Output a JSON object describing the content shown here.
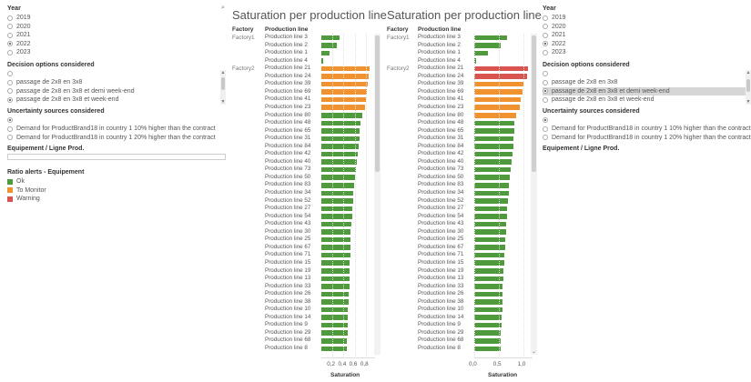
{
  "left_panel": {
    "year_title": "Year",
    "years": [
      {
        "label": "2019",
        "selected": false
      },
      {
        "label": "2020",
        "selected": false
      },
      {
        "label": "2021",
        "selected": false
      },
      {
        "label": "2022",
        "selected": true
      },
      {
        "label": "2023",
        "selected": false
      }
    ],
    "decision_title": "Decision options considered",
    "decision_options": [
      {
        "label": "",
        "selected": false
      },
      {
        "label": "passage de 2x8 en 3x8",
        "selected": false
      },
      {
        "label": "passage de 2x8 en 3x8 et demi week-end",
        "selected": false
      },
      {
        "label": "passage de 2x8 en 3x8 et week-end",
        "selected": true
      }
    ],
    "uncertainty_title": "Uncertainty sources considered",
    "uncertainty_options": [
      {
        "label": "",
        "selected": true
      },
      {
        "label": "Demand for ProductBrand18 in country 1 10% higher than the contract",
        "selected": false
      },
      {
        "label": "Demand for ProductBrand18 in country 1 20% higher than the contract",
        "selected": false
      }
    ],
    "equipement_title": "Equipement / Ligne Prod.",
    "ratio_title": "Ratio alerts - Equipement",
    "legend": [
      {
        "label": "Ok",
        "color": "#4e9a3c"
      },
      {
        "label": "To Monitor",
        "color": "#f0922f"
      },
      {
        "label": "Warning",
        "color": "#d9534f"
      }
    ]
  },
  "right_panel": {
    "year_title": "Year",
    "years": [
      {
        "label": "2019",
        "selected": false
      },
      {
        "label": "2020",
        "selected": false
      },
      {
        "label": "2021",
        "selected": false
      },
      {
        "label": "2022",
        "selected": true
      },
      {
        "label": "2023",
        "selected": false
      }
    ],
    "decision_title": "Decision options considered",
    "decision_options": [
      {
        "label": "",
        "selected": false
      },
      {
        "label": "passage de 2x8 en 3x8",
        "selected": false
      },
      {
        "label": "passage de 2x8 en 3x8 et demi week-end",
        "selected": true
      },
      {
        "label": "passage de 2x8 en 3x8 et week-end",
        "selected": false
      }
    ],
    "uncertainty_title": "Uncertainty sources considered",
    "uncertainty_options": [
      {
        "label": "",
        "selected": true
      },
      {
        "label": "Demand for ProductBrand18 in country 1 10% higher than the contract",
        "selected": false
      },
      {
        "label": "Demand for ProductBrand18 in country 1 20% higher than the contract",
        "selected": false
      }
    ],
    "equipement_title": "Equipement / Ligne Prod."
  },
  "colors": {
    "ok": "#4e9a3c",
    "monitor": "#f0922f",
    "warning": "#d9534f"
  },
  "chart_data": [
    {
      "type": "bar",
      "title": "Saturation per production line",
      "header_factory": "Factory",
      "header_line": "Production line",
      "xlabel": "Saturation",
      "ticks": [
        "0,2",
        "0,4",
        "0,6",
        "0,8"
      ],
      "tick_values": [
        0.2,
        0.4,
        0.6,
        0.8
      ],
      "xlim": [
        0,
        0.9
      ],
      "rows": [
        {
          "factory": "Factory1",
          "line": "Production line 3",
          "value": 0.33,
          "status": "ok"
        },
        {
          "factory": "",
          "line": "Production line 2",
          "value": 0.28,
          "status": "ok"
        },
        {
          "factory": "",
          "line": "Production line 1",
          "value": 0.14,
          "status": "ok"
        },
        {
          "factory": "",
          "line": "Production line 4",
          "value": 0.02,
          "status": "ok"
        },
        {
          "factory": "Factory2",
          "line": "Production line 21",
          "value": 0.86,
          "status": "monitor"
        },
        {
          "factory": "",
          "line": "Production line 24",
          "value": 0.85,
          "status": "monitor"
        },
        {
          "factory": "",
          "line": "Production line 39",
          "value": 0.83,
          "status": "monitor"
        },
        {
          "factory": "",
          "line": "Production line 69",
          "value": 0.81,
          "status": "monitor"
        },
        {
          "factory": "",
          "line": "Production line 41",
          "value": 0.8,
          "status": "monitor"
        },
        {
          "factory": "",
          "line": "Production line 23",
          "value": 0.78,
          "status": "monitor"
        },
        {
          "factory": "",
          "line": "Production line 80",
          "value": 0.73,
          "status": "ok"
        },
        {
          "factory": "",
          "line": "Production line 48",
          "value": 0.7,
          "status": "ok"
        },
        {
          "factory": "",
          "line": "Production line 65",
          "value": 0.69,
          "status": "ok"
        },
        {
          "factory": "",
          "line": "Production line 31",
          "value": 0.68,
          "status": "ok"
        },
        {
          "factory": "",
          "line": "Production line 84",
          "value": 0.67,
          "status": "ok"
        },
        {
          "factory": "",
          "line": "Production line 42",
          "value": 0.66,
          "status": "ok"
        },
        {
          "factory": "",
          "line": "Production line 40",
          "value": 0.64,
          "status": "ok"
        },
        {
          "factory": "",
          "line": "Production line 73",
          "value": 0.62,
          "status": "ok"
        },
        {
          "factory": "",
          "line": "Production line 50",
          "value": 0.6,
          "status": "ok"
        },
        {
          "factory": "",
          "line": "Production line 83",
          "value": 0.59,
          "status": "ok"
        },
        {
          "factory": "",
          "line": "Production line 34",
          "value": 0.58,
          "status": "ok"
        },
        {
          "factory": "",
          "line": "Production line 52",
          "value": 0.57,
          "status": "ok"
        },
        {
          "factory": "",
          "line": "Production line 27",
          "value": 0.56,
          "status": "ok"
        },
        {
          "factory": "",
          "line": "Production line 54",
          "value": 0.55,
          "status": "ok"
        },
        {
          "factory": "",
          "line": "Production line 43",
          "value": 0.54,
          "status": "ok"
        },
        {
          "factory": "",
          "line": "Production line 30",
          "value": 0.53,
          "status": "ok"
        },
        {
          "factory": "",
          "line": "Production line 25",
          "value": 0.53,
          "status": "ok"
        },
        {
          "factory": "",
          "line": "Production line 67",
          "value": 0.52,
          "status": "ok"
        },
        {
          "factory": "",
          "line": "Production line 71",
          "value": 0.52,
          "status": "ok"
        },
        {
          "factory": "",
          "line": "Production line 15",
          "value": 0.51,
          "status": "ok"
        },
        {
          "factory": "",
          "line": "Production line 19",
          "value": 0.51,
          "status": "ok"
        },
        {
          "factory": "",
          "line": "Production line 13",
          "value": 0.5,
          "status": "ok"
        },
        {
          "factory": "",
          "line": "Production line 33",
          "value": 0.5,
          "status": "ok"
        },
        {
          "factory": "",
          "line": "Production line 26",
          "value": 0.49,
          "status": "ok"
        },
        {
          "factory": "",
          "line": "Production line 38",
          "value": 0.49,
          "status": "ok"
        },
        {
          "factory": "",
          "line": "Production line 10",
          "value": 0.48,
          "status": "ok"
        },
        {
          "factory": "",
          "line": "Production line 14",
          "value": 0.48,
          "status": "ok"
        },
        {
          "factory": "",
          "line": "Production line 9",
          "value": 0.47,
          "status": "ok"
        },
        {
          "factory": "",
          "line": "Production line 29",
          "value": 0.47,
          "status": "ok"
        },
        {
          "factory": "",
          "line": "Production line 68",
          "value": 0.46,
          "status": "ok"
        },
        {
          "factory": "",
          "line": "Production line 8",
          "value": 0.46,
          "status": "ok"
        }
      ]
    },
    {
      "type": "bar",
      "title": "Saturation per production line",
      "header_factory": "Factory",
      "header_line": "Production line",
      "xlabel": "Saturation",
      "ticks": [
        "0,0",
        "0,5",
        "1,0"
      ],
      "tick_values": [
        0.0,
        0.5,
        1.0
      ],
      "xlim": [
        0,
        1.12
      ],
      "rows": [
        {
          "factory": "Factory1",
          "line": "Production line 3",
          "value": 0.68,
          "status": "ok"
        },
        {
          "factory": "",
          "line": "Production line 2",
          "value": 0.55,
          "status": "ok"
        },
        {
          "factory": "",
          "line": "Production line 1",
          "value": 0.28,
          "status": "ok"
        },
        {
          "factory": "",
          "line": "Production line 4",
          "value": 0.04,
          "status": "ok"
        },
        {
          "factory": "Factory2",
          "line": "Production line 21",
          "value": 1.1,
          "status": "warning"
        },
        {
          "factory": "",
          "line": "Production line 24",
          "value": 1.08,
          "status": "warning"
        },
        {
          "factory": "",
          "line": "Production line 39",
          "value": 1.0,
          "status": "monitor"
        },
        {
          "factory": "",
          "line": "Production line 69",
          "value": 0.98,
          "status": "monitor"
        },
        {
          "factory": "",
          "line": "Production line 41",
          "value": 0.96,
          "status": "monitor"
        },
        {
          "factory": "",
          "line": "Production line 23",
          "value": 0.94,
          "status": "monitor"
        },
        {
          "factory": "",
          "line": "Production line 80",
          "value": 0.86,
          "status": "monitor"
        },
        {
          "factory": "",
          "line": "Production line 48",
          "value": 0.83,
          "status": "ok"
        },
        {
          "factory": "",
          "line": "Production line 65",
          "value": 0.82,
          "status": "ok"
        },
        {
          "factory": "",
          "line": "Production line 31",
          "value": 0.81,
          "status": "ok"
        },
        {
          "factory": "",
          "line": "Production line 84",
          "value": 0.8,
          "status": "ok"
        },
        {
          "factory": "",
          "line": "Production line 42",
          "value": 0.79,
          "status": "ok"
        },
        {
          "factory": "",
          "line": "Production line 40",
          "value": 0.77,
          "status": "ok"
        },
        {
          "factory": "",
          "line": "Production line 73",
          "value": 0.75,
          "status": "ok"
        },
        {
          "factory": "",
          "line": "Production line 50",
          "value": 0.72,
          "status": "ok"
        },
        {
          "factory": "",
          "line": "Production line 83",
          "value": 0.71,
          "status": "ok"
        },
        {
          "factory": "",
          "line": "Production line 34",
          "value": 0.7,
          "status": "ok"
        },
        {
          "factory": "",
          "line": "Production line 52",
          "value": 0.69,
          "status": "ok"
        },
        {
          "factory": "",
          "line": "Production line 27",
          "value": 0.68,
          "status": "ok"
        },
        {
          "factory": "",
          "line": "Production line 54",
          "value": 0.67,
          "status": "ok"
        },
        {
          "factory": "",
          "line": "Production line 43",
          "value": 0.66,
          "status": "ok"
        },
        {
          "factory": "",
          "line": "Production line 30",
          "value": 0.65,
          "status": "ok"
        },
        {
          "factory": "",
          "line": "Production line 25",
          "value": 0.64,
          "status": "ok"
        },
        {
          "factory": "",
          "line": "Production line 67",
          "value": 0.63,
          "status": "ok"
        },
        {
          "factory": "",
          "line": "Production line 71",
          "value": 0.62,
          "status": "ok"
        },
        {
          "factory": "",
          "line": "Production line 15",
          "value": 0.61,
          "status": "ok"
        },
        {
          "factory": "",
          "line": "Production line 19",
          "value": 0.6,
          "status": "ok"
        },
        {
          "factory": "",
          "line": "Production line 13",
          "value": 0.59,
          "status": "ok"
        },
        {
          "factory": "",
          "line": "Production line 33",
          "value": 0.58,
          "status": "ok"
        },
        {
          "factory": "",
          "line": "Production line 26",
          "value": 0.58,
          "status": "ok"
        },
        {
          "factory": "",
          "line": "Production line 38",
          "value": 0.57,
          "status": "ok"
        },
        {
          "factory": "",
          "line": "Production line 10",
          "value": 0.57,
          "status": "ok"
        },
        {
          "factory": "",
          "line": "Production line 14",
          "value": 0.56,
          "status": "ok"
        },
        {
          "factory": "",
          "line": "Production line 9",
          "value": 0.56,
          "status": "ok"
        },
        {
          "factory": "",
          "line": "Production line 29",
          "value": 0.55,
          "status": "ok"
        },
        {
          "factory": "",
          "line": "Production line 68",
          "value": 0.55,
          "status": "ok"
        },
        {
          "factory": "",
          "line": "Production line 8",
          "value": 0.54,
          "status": "ok"
        }
      ]
    }
  ]
}
